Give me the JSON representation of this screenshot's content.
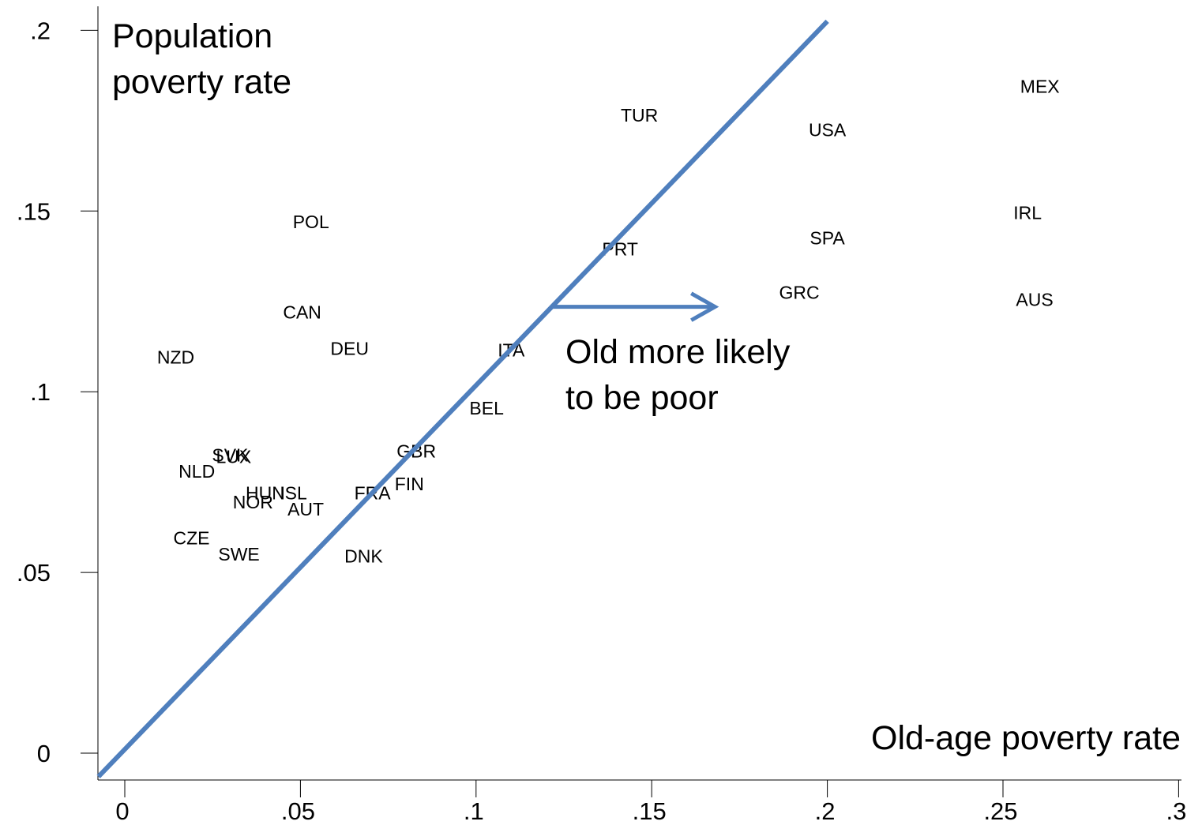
{
  "chart_data": {
    "type": "scatter",
    "xlabel": "Old-age poverty rate",
    "ylabel": "Population poverty rate",
    "ylabel_lines": [
      "Population",
      "poverty rate"
    ],
    "xlim": [
      -0.0075,
      0.3
    ],
    "ylim": [
      -0.0065,
      0.21
    ],
    "x_ticks": [
      0,
      0.05,
      0.1,
      0.15,
      0.2,
      0.25,
      0.3
    ],
    "x_tick_labels": [
      "0",
      ".05",
      ".1",
      ".15",
      ".2",
      ".25",
      ".3"
    ],
    "y_ticks": [
      0,
      0.05,
      0.1,
      0.15,
      0.2
    ],
    "y_tick_labels": [
      "0",
      ".05",
      ".1",
      ".15",
      ".2"
    ],
    "grid": false,
    "reference_line": {
      "from": [
        -0.0075,
        -0.0065
      ],
      "to": [
        0.2,
        0.2025
      ],
      "color": "#4f7fbd"
    },
    "annotation": {
      "lines": [
        "Old more likely",
        "to be poor"
      ],
      "arrow_from": [
        0.122,
        0.1235
      ],
      "arrow_to": [
        0.168,
        0.1235
      ],
      "color": "#4f7fbd"
    },
    "points": [
      {
        "label": "MEX",
        "x": 0.2605,
        "y": 0.1845
      },
      {
        "label": "TUR",
        "x": 0.1465,
        "y": 0.1765
      },
      {
        "label": "USA",
        "x": 0.2,
        "y": 0.1725
      },
      {
        "label": "POL",
        "x": 0.053,
        "y": 0.147
      },
      {
        "label": "IRL",
        "x": 0.257,
        "y": 0.1495
      },
      {
        "label": "SPA",
        "x": 0.2,
        "y": 0.1425
      },
      {
        "label": "PRT",
        "x": 0.141,
        "y": 0.1395
      },
      {
        "label": "GRC",
        "x": 0.192,
        "y": 0.1275
      },
      {
        "label": "AUS",
        "x": 0.259,
        "y": 0.1255
      },
      {
        "label": "CAN",
        "x": 0.0505,
        "y": 0.122
      },
      {
        "label": "ITA",
        "x": 0.11,
        "y": 0.1115
      },
      {
        "label": "DEU",
        "x": 0.064,
        "y": 0.112
      },
      {
        "label": "NZD",
        "x": 0.0145,
        "y": 0.1095
      },
      {
        "label": "BEL",
        "x": 0.103,
        "y": 0.0955
      },
      {
        "label": "GBR",
        "x": 0.083,
        "y": 0.0835
      },
      {
        "label": "SVK",
        "x": 0.03,
        "y": 0.0825
      },
      {
        "label": "LUX",
        "x": 0.031,
        "y": 0.082
      },
      {
        "label": "NLD",
        "x": 0.0205,
        "y": 0.078
      },
      {
        "label": "FIN",
        "x": 0.081,
        "y": 0.0745
      },
      {
        "label": "FRA",
        "x": 0.0705,
        "y": 0.072
      },
      {
        "label": "HUN",
        "x": 0.04,
        "y": 0.072
      },
      {
        "label": "ISL",
        "x": 0.048,
        "y": 0.072
      },
      {
        "label": "NOR",
        "x": 0.0365,
        "y": 0.0695
      },
      {
        "label": "AUT",
        "x": 0.0515,
        "y": 0.0675
      },
      {
        "label": "CZE",
        "x": 0.019,
        "y": 0.0595
      },
      {
        "label": "SWE",
        "x": 0.0325,
        "y": 0.055
      },
      {
        "label": "DNK",
        "x": 0.068,
        "y": 0.0545
      }
    ]
  }
}
